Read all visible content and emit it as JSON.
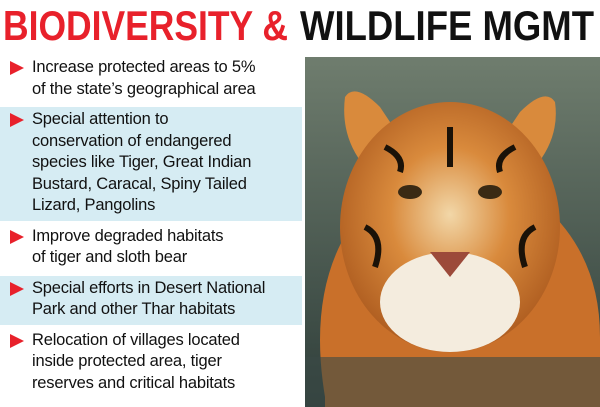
{
  "header": {
    "title_red": "BIODIVERSITY &",
    "title_black": "WILDLIFE MGMT"
  },
  "bullets": [
    {
      "lines": [
        "Increase protected areas to 5%",
        "of the state’s geographical area"
      ]
    },
    {
      "lines": [
        "Special attention to",
        "conservation of endangered",
        "species like Tiger, Great Indian",
        "Bustard, Caracal, Spiny Tailed",
        "Lizard, Pangolins"
      ]
    },
    {
      "lines": [
        "Improve degraded habitats",
        "of tiger and sloth bear"
      ]
    },
    {
      "lines": [
        "Special efforts in Desert National",
        "Park and other Thar habitats"
      ]
    },
    {
      "lines": [
        "Relocation of villages located",
        "inside protected area, tiger",
        "reserves and critical habitats"
      ]
    }
  ]
}
